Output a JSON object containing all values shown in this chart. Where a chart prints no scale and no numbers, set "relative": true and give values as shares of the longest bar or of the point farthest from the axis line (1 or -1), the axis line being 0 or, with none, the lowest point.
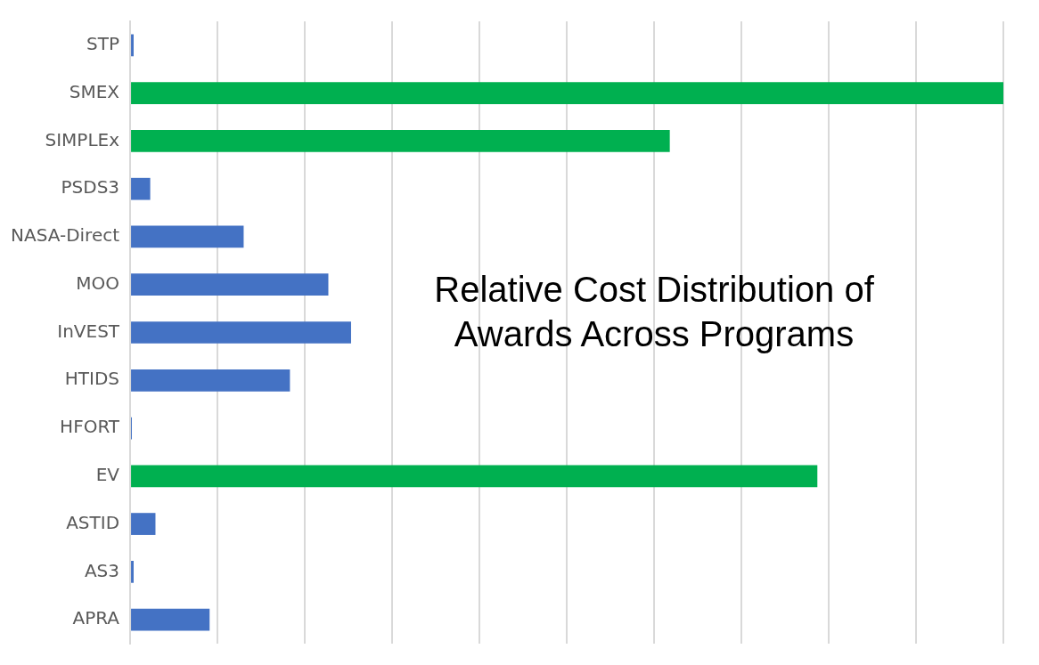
{
  "chart_data": {
    "type": "bar",
    "orientation": "horizontal",
    "relative": true,
    "title": "Relative Cost Distribution of Awards Across Programs",
    "categories": [
      "STP",
      "SMEX",
      "SIMPLEx",
      "PSDS3",
      "NASA-Direct",
      "MOO",
      "InVEST",
      "HTIDS",
      "HFORT",
      "EV",
      "ASTID",
      "AS3",
      "APRA"
    ],
    "values": [
      0.004,
      1,
      0.618,
      0.023,
      0.13,
      0.227,
      0.253,
      0.183,
      0.002,
      0.787,
      0.029,
      0.004,
      0.091
    ],
    "colors": [
      "#4472c4",
      "#00b050",
      "#00b050",
      "#4472c4",
      "#4472c4",
      "#4472c4",
      "#4472c4",
      "#4472c4",
      "#4472c4",
      "#00b050",
      "#4472c4",
      "#4472c4",
      "#4472c4"
    ],
    "grid": "x",
    "legend": false
  }
}
